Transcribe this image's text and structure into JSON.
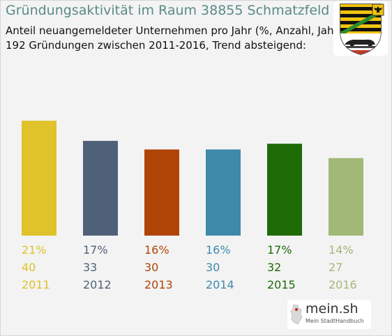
{
  "header": {
    "title": "Gründungsaktivität im Raum 38855 Schmatzfeld",
    "subtitle_line1": "Anteil neuangemeldeter Unternehmen pro Jahr (%, Anzahl, Jahr)",
    "subtitle_line2": "192 Gründungen zwischen 2011-2016, Trend absteigend:"
  },
  "branding": {
    "name": "mein.sh",
    "tagline": "Mein StadtHandbuch"
  },
  "chart_data": {
    "type": "bar",
    "categories": [
      "2011",
      "2012",
      "2013",
      "2014",
      "2015",
      "2016"
    ],
    "percent_labels": [
      "21%",
      "17%",
      "16%",
      "16%",
      "17%",
      "14%"
    ],
    "values": [
      40,
      33,
      30,
      30,
      32,
      27
    ],
    "colors": [
      "#e0c22a",
      "#4f6079",
      "#b04407",
      "#3d8aab",
      "#1e6b08",
      "#a2b877"
    ],
    "ylim": [
      0,
      42
    ],
    "grid": false
  }
}
